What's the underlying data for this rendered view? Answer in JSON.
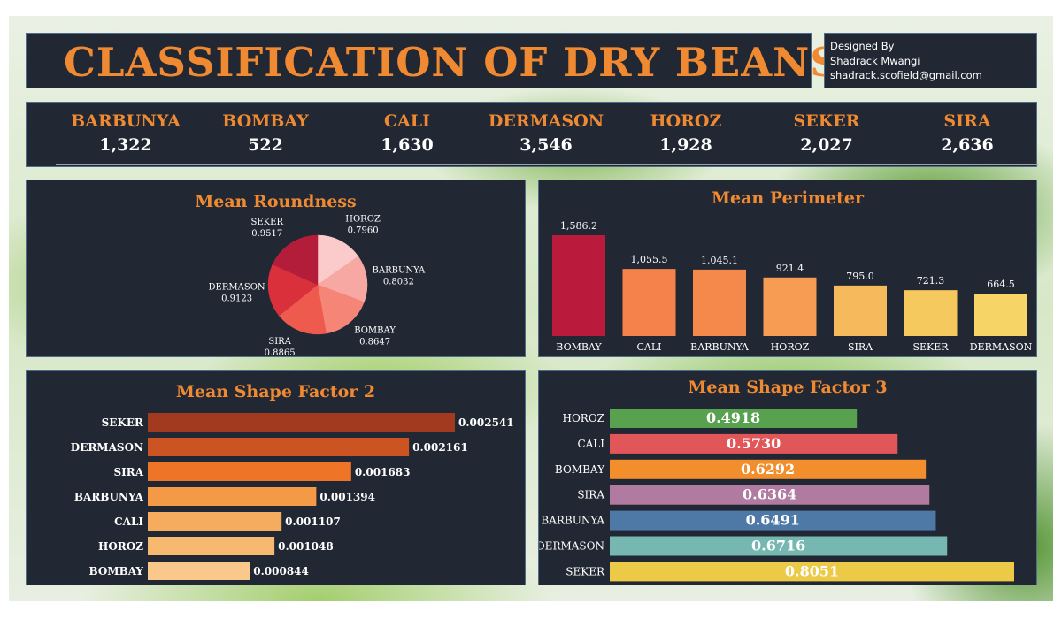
{
  "header": {
    "title": "CLASSIFICATION OF DRY BEANS",
    "credit_line1": "Designed By",
    "credit_line2": "Shadrack Mwangi",
    "credit_line3": "shadrack.scofield@gmail.com"
  },
  "counts": [
    {
      "name": "BARBUNYA",
      "value": "1,322"
    },
    {
      "name": "BOMBAY",
      "value": "522"
    },
    {
      "name": "CALI",
      "value": "1,630"
    },
    {
      "name": "DERMASON",
      "value": "3,546"
    },
    {
      "name": "HOROZ",
      "value": "1,928"
    },
    {
      "name": "SEKER",
      "value": "2,027"
    },
    {
      "name": "SIRA",
      "value": "2,636"
    }
  ],
  "chart_data": [
    {
      "type": "pie",
      "title": "Mean Roundness",
      "categories": [
        "HOROZ",
        "BARBUNYA",
        "BOMBAY",
        "SIRA",
        "DERMASON",
        "SEKER"
      ],
      "values": [
        0.796,
        0.8032,
        0.8647,
        0.8865,
        0.9123,
        0.9517
      ],
      "labels": [
        "0.7960",
        "0.8032",
        "0.8647",
        "0.8865",
        "0.9123",
        "0.9517"
      ],
      "colors": [
        "#fbcaca",
        "#f8a8a2",
        "#f48577",
        "#ef5a4e",
        "#d9303c",
        "#b31d3a"
      ]
    },
    {
      "type": "bar",
      "title": "Mean Perimeter",
      "categories": [
        "BOMBAY",
        "CALI",
        "BARBUNYA",
        "HOROZ",
        "SIRA",
        "SEKER",
        "DERMASON"
      ],
      "values": [
        1586.2,
        1055.5,
        1045.1,
        921.4,
        795.0,
        721.3,
        664.5
      ],
      "labels": [
        "1,586.2",
        "1,055.5",
        "1,045.1",
        "921.4",
        "795.0",
        "721.3",
        "664.5"
      ],
      "colors": [
        "#ba1b3d",
        "#f5824a",
        "#f5884b",
        "#f79c53",
        "#f6b95b",
        "#f6c95e",
        "#f6d466"
      ]
    },
    {
      "type": "bar",
      "orientation": "horizontal",
      "title": "Mean Shape Factor 2",
      "categories": [
        "SEKER",
        "DERMASON",
        "SIRA",
        "BARBUNYA",
        "CALI",
        "HOROZ",
        "BOMBAY"
      ],
      "values": [
        0.002541,
        0.002161,
        0.001683,
        0.001394,
        0.001107,
        0.001048,
        0.000844
      ],
      "labels": [
        "0.002541",
        "0.002161",
        "0.001683",
        "0.001394",
        "0.001107",
        "0.001048",
        "0.000844"
      ],
      "colors": [
        "#a13a1e",
        "#cc5422",
        "#ee7527",
        "#f49a47",
        "#f6ac5f",
        "#f7b86f",
        "#f9c88a"
      ]
    },
    {
      "type": "bar",
      "orientation": "horizontal",
      "title": "Mean Shape Factor 3",
      "categories": [
        "HOROZ",
        "CALI",
        "BOMBAY",
        "SIRA",
        "BARBUNYA",
        "DERMASON",
        "SEKER"
      ],
      "values": [
        0.4918,
        0.573,
        0.6292,
        0.6364,
        0.6491,
        0.6716,
        0.8051
      ],
      "labels": [
        "0.4918",
        "0.5730",
        "0.6292",
        "0.6364",
        "0.6491",
        "0.6716",
        "0.8051"
      ],
      "colors": [
        "#58a14e",
        "#e15759",
        "#f28e2b",
        "#b07aa1",
        "#4e79a7",
        "#76b7b2",
        "#edc948"
      ]
    }
  ],
  "colors": {
    "panel_bg": "#222833",
    "accent": "#f08a32",
    "text": "#ffffff"
  }
}
